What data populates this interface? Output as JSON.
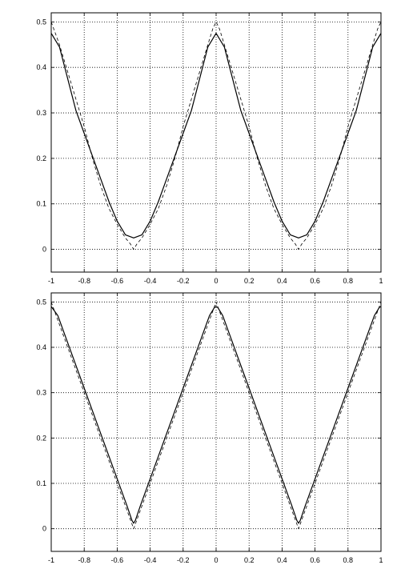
{
  "chart_data": [
    {
      "type": "line",
      "title": "",
      "xlabel": "",
      "ylabel": "",
      "xlim": [
        -1,
        1
      ],
      "ylim": [
        -0.05,
        0.52
      ],
      "grid": true,
      "grid_style": "dotted",
      "xticks": [
        -1,
        -0.8,
        -0.6,
        -0.4,
        -0.2,
        0,
        0.2,
        0.4,
        0.6,
        0.8,
        1
      ],
      "xtick_labels": [
        "-1",
        "-0.8",
        "-0.6",
        "-0.4",
        "-0.2",
        "0",
        "0.2",
        "0.4",
        "0.6",
        "0.8",
        "1"
      ],
      "yticks": [
        0,
        0.1,
        0.2,
        0.3,
        0.4,
        0.5
      ],
      "ytick_labels": [
        "0",
        "0.1",
        "0.2",
        "0.3",
        "0.4",
        "0.5"
      ],
      "series": [
        {
          "style": "solid",
          "color": "#000000",
          "x": [
            -1,
            -0.95,
            -0.9,
            -0.85,
            -0.8,
            -0.75,
            -0.7,
            -0.65,
            -0.6,
            -0.55,
            -0.5,
            -0.45,
            -0.4,
            -0.35,
            -0.3,
            -0.25,
            -0.2,
            -0.15,
            -0.1,
            -0.05,
            0,
            0.05,
            0.1,
            0.15,
            0.2,
            0.25,
            0.3,
            0.35,
            0.4,
            0.45,
            0.5,
            0.55,
            0.6,
            0.65,
            0.7,
            0.75,
            0.8,
            0.85,
            0.9,
            0.95,
            1
          ],
          "y": [
            0.475,
            0.445,
            0.375,
            0.305,
            0.255,
            0.205,
            0.155,
            0.105,
            0.062,
            0.032,
            0.025,
            0.032,
            0.062,
            0.105,
            0.155,
            0.205,
            0.255,
            0.305,
            0.375,
            0.445,
            0.475,
            0.445,
            0.375,
            0.305,
            0.255,
            0.205,
            0.155,
            0.105,
            0.062,
            0.032,
            0.025,
            0.032,
            0.062,
            0.105,
            0.155,
            0.205,
            0.255,
            0.305,
            0.375,
            0.445,
            0.475
          ]
        },
        {
          "style": "dashed",
          "color": "#000000",
          "x": [
            -1,
            -0.95,
            -0.9,
            -0.85,
            -0.8,
            -0.75,
            -0.7,
            -0.65,
            -0.6,
            -0.55,
            -0.52,
            -0.5,
            -0.48,
            -0.45,
            -0.4,
            -0.35,
            -0.3,
            -0.25,
            -0.2,
            -0.15,
            -0.1,
            -0.05,
            -0.02,
            0,
            0.02,
            0.05,
            0.1,
            0.15,
            0.2,
            0.25,
            0.3,
            0.35,
            0.4,
            0.45,
            0.48,
            0.5,
            0.52,
            0.55,
            0.6,
            0.65,
            0.7,
            0.75,
            0.8,
            0.85,
            0.9,
            0.95,
            0.98,
            1
          ],
          "y": [
            0.5,
            0.45,
            0.39,
            0.33,
            0.27,
            0.2,
            0.14,
            0.09,
            0.055,
            0.025,
            0.012,
            0.0,
            0.012,
            0.025,
            0.055,
            0.09,
            0.14,
            0.2,
            0.27,
            0.33,
            0.39,
            0.45,
            0.485,
            0.5,
            0.485,
            0.45,
            0.39,
            0.33,
            0.27,
            0.2,
            0.14,
            0.09,
            0.055,
            0.025,
            0.012,
            0.0,
            0.012,
            0.025,
            0.055,
            0.09,
            0.14,
            0.2,
            0.27,
            0.33,
            0.39,
            0.45,
            0.485,
            0.5
          ]
        }
      ]
    },
    {
      "type": "line",
      "title": "",
      "xlabel": "",
      "ylabel": "",
      "xlim": [
        -1,
        1
      ],
      "ylim": [
        -0.05,
        0.52
      ],
      "grid": true,
      "grid_style": "dotted",
      "xticks": [
        -1,
        -0.8,
        -0.6,
        -0.4,
        -0.2,
        0,
        0.2,
        0.4,
        0.6,
        0.8,
        1
      ],
      "xtick_labels": [
        "-1",
        "-0.8",
        "-0.6",
        "-0.4",
        "-0.2",
        "0",
        "0.2",
        "0.4",
        "0.6",
        "0.8",
        "1"
      ],
      "yticks": [
        0,
        0.1,
        0.2,
        0.3,
        0.4,
        0.5
      ],
      "ytick_labels": [
        "0",
        "0.1",
        "0.2",
        "0.3",
        "0.4",
        "0.5"
      ],
      "series": [
        {
          "style": "solid",
          "color": "#000000",
          "x": [
            -1,
            -0.96,
            -0.9,
            -0.8,
            -0.7,
            -0.6,
            -0.54,
            -0.51,
            -0.5,
            -0.49,
            -0.46,
            -0.4,
            -0.3,
            -0.2,
            -0.1,
            -0.04,
            -0.01,
            0,
            0.01,
            0.04,
            0.1,
            0.2,
            0.3,
            0.4,
            0.46,
            0.49,
            0.5,
            0.51,
            0.54,
            0.6,
            0.7,
            0.8,
            0.9,
            0.96,
            0.99,
            1
          ],
          "y": [
            0.49,
            0.47,
            0.41,
            0.31,
            0.21,
            0.11,
            0.05,
            0.018,
            0.012,
            0.018,
            0.05,
            0.11,
            0.21,
            0.31,
            0.41,
            0.47,
            0.488,
            0.49,
            0.488,
            0.47,
            0.41,
            0.31,
            0.21,
            0.11,
            0.05,
            0.018,
            0.012,
            0.018,
            0.05,
            0.11,
            0.21,
            0.31,
            0.41,
            0.47,
            0.488,
            0.49
          ]
        },
        {
          "style": "dashed",
          "color": "#000000",
          "x": [
            -1,
            -0.9,
            -0.8,
            -0.7,
            -0.6,
            -0.5,
            -0.4,
            -0.3,
            -0.2,
            -0.1,
            0,
            0.1,
            0.2,
            0.3,
            0.4,
            0.5,
            0.6,
            0.7,
            0.8,
            0.9,
            1
          ],
          "y": [
            0.5,
            0.4,
            0.3,
            0.2,
            0.1,
            0.0,
            0.1,
            0.2,
            0.3,
            0.4,
            0.5,
            0.4,
            0.3,
            0.2,
            0.1,
            0.0,
            0.1,
            0.2,
            0.3,
            0.4,
            0.5
          ]
        }
      ]
    }
  ]
}
